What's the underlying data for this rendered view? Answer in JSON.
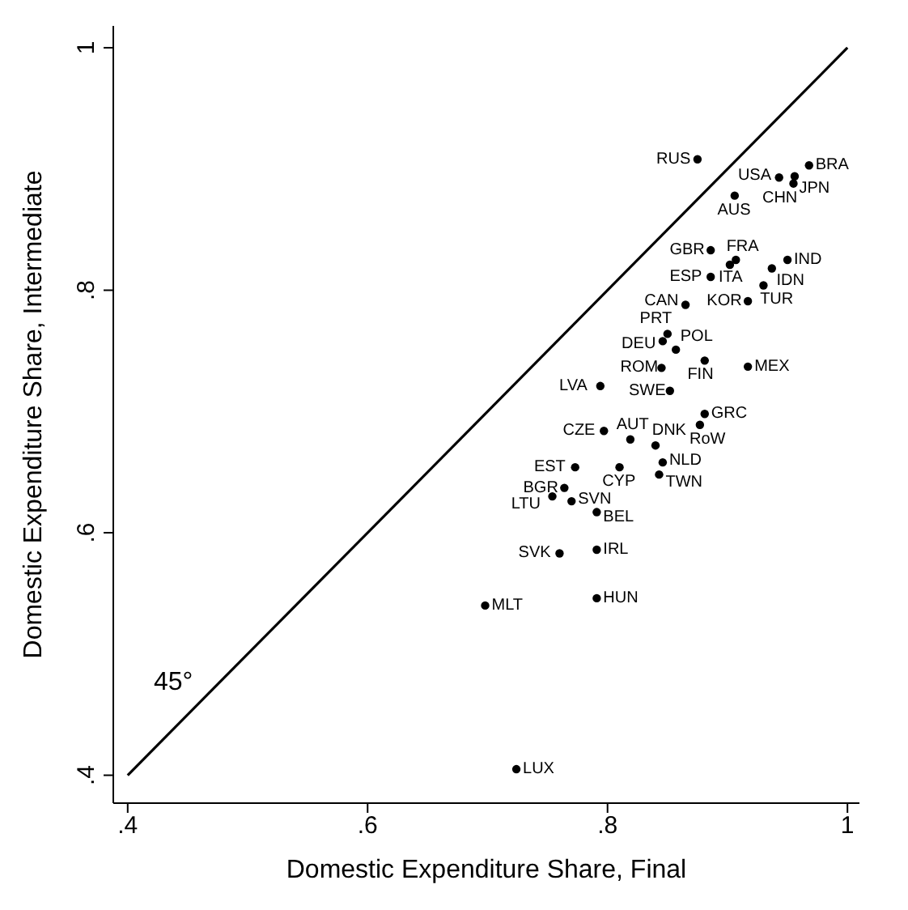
{
  "chart_data": {
    "type": "scatter",
    "xlabel": "Domestic Expenditure Share, Final",
    "ylabel": "Domestic Expenditure Share, Intermediate",
    "xlim": [
      0.388,
      1.01
    ],
    "ylim": [
      0.377,
      1.018
    ],
    "xticks": [
      {
        "value": 0.4,
        "label": ".4"
      },
      {
        "value": 0.6,
        "label": ".6"
      },
      {
        "value": 0.8,
        "label": ".8"
      },
      {
        "value": 1,
        "label": "1"
      }
    ],
    "yticks": [
      {
        "value": 0.4,
        "label": ".4"
      },
      {
        "value": 0.6,
        "label": ".6"
      },
      {
        "value": 0.8,
        "label": ".8"
      },
      {
        "value": 1,
        "label": "1"
      }
    ],
    "grid": false,
    "marker": "circle",
    "annotations": [
      "45°"
    ],
    "series": [
      {
        "type": "line",
        "color": "#000000",
        "marker": "none",
        "x": [
          0.4,
          1
        ],
        "values": [
          0.4,
          1
        ]
      },
      {
        "name": "RUS",
        "color": "#000000",
        "x": [
          0.875
        ],
        "values": [
          0.908
        ]
      },
      {
        "name": "BRA",
        "color": "#000000",
        "x": [
          0.968
        ],
        "values": [
          0.903
        ]
      },
      {
        "name": "USA",
        "color": "#000000",
        "x": [
          0.943
        ],
        "values": [
          0.893
        ]
      },
      {
        "name": "JPN",
        "color": "#000000",
        "x": [
          0.956
        ],
        "values": [
          0.894
        ]
      },
      {
        "name": "CHN",
        "color": "#000000",
        "x": [
          0.955
        ],
        "values": [
          0.888
        ]
      },
      {
        "name": "AUS",
        "color": "#000000",
        "x": [
          0.906
        ],
        "values": [
          0.878
        ]
      },
      {
        "name": "GBR",
        "color": "#000000",
        "x": [
          0.886
        ],
        "values": [
          0.833
        ]
      },
      {
        "name": "FRA",
        "color": "#000000",
        "x": [
          0.902
        ],
        "values": [
          0.821
        ]
      },
      {
        "name": "ITA",
        "color": "#000000",
        "x": [
          0.907
        ],
        "values": [
          0.825
        ]
      },
      {
        "name": "IND",
        "color": "#000000",
        "x": [
          0.95
        ],
        "values": [
          0.825
        ]
      },
      {
        "name": "IDN",
        "color": "#000000",
        "x": [
          0.937
        ],
        "values": [
          0.818
        ]
      },
      {
        "name": "ESP",
        "color": "#000000",
        "x": [
          0.886
        ],
        "values": [
          0.811
        ]
      },
      {
        "name": "TUR",
        "color": "#000000",
        "x": [
          0.93
        ],
        "values": [
          0.804
        ]
      },
      {
        "name": "CAN",
        "color": "#000000",
        "x": [
          0.865
        ],
        "values": [
          0.788
        ]
      },
      {
        "name": "KOR",
        "color": "#000000",
        "x": [
          0.917
        ],
        "values": [
          0.791
        ]
      },
      {
        "name": "PRT",
        "color": "#000000",
        "x": [
          0.85
        ],
        "values": [
          0.764
        ]
      },
      {
        "name": "DEU",
        "color": "#000000",
        "x": [
          0.846
        ],
        "values": [
          0.758
        ]
      },
      {
        "name": "POL",
        "color": "#000000",
        "x": [
          0.857
        ],
        "values": [
          0.751
        ]
      },
      {
        "name": "FIN",
        "color": "#000000",
        "x": [
          0.881
        ],
        "values": [
          0.742
        ]
      },
      {
        "name": "MEX",
        "color": "#000000",
        "x": [
          0.917
        ],
        "values": [
          0.737
        ]
      },
      {
        "name": "ROM",
        "color": "#000000",
        "x": [
          0.845
        ],
        "values": [
          0.736
        ]
      },
      {
        "name": "LVA",
        "color": "#000000",
        "x": [
          0.794
        ],
        "values": [
          0.721
        ]
      },
      {
        "name": "SWE",
        "color": "#000000",
        "x": [
          0.852
        ],
        "values": [
          0.717
        ]
      },
      {
        "name": "GRC",
        "color": "#000000",
        "x": [
          0.881
        ],
        "values": [
          0.698
        ]
      },
      {
        "name": "RoW",
        "color": "#000000",
        "x": [
          0.877
        ],
        "values": [
          0.689
        ]
      },
      {
        "name": "CZE",
        "color": "#000000",
        "x": [
          0.797
        ],
        "values": [
          0.684
        ]
      },
      {
        "name": "AUT",
        "color": "#000000",
        "x": [
          0.819
        ],
        "values": [
          0.677
        ]
      },
      {
        "name": "DNK",
        "color": "#000000",
        "x": [
          0.84
        ],
        "values": [
          0.672
        ]
      },
      {
        "name": "EST",
        "color": "#000000",
        "x": [
          0.773
        ],
        "values": [
          0.654
        ]
      },
      {
        "name": "CYP",
        "color": "#000000",
        "x": [
          0.81
        ],
        "values": [
          0.654
        ]
      },
      {
        "name": "NLD",
        "color": "#000000",
        "x": [
          0.846
        ],
        "values": [
          0.658
        ]
      },
      {
        "name": "TWN",
        "color": "#000000",
        "x": [
          0.843
        ],
        "values": [
          0.648
        ]
      },
      {
        "name": "BGR",
        "color": "#000000",
        "x": [
          0.764
        ],
        "values": [
          0.637
        ]
      },
      {
        "name": "LTU",
        "color": "#000000",
        "x": [
          0.754
        ],
        "values": [
          0.63
        ]
      },
      {
        "name": "SVN",
        "color": "#000000",
        "x": [
          0.77
        ],
        "values": [
          0.626
        ]
      },
      {
        "name": "BEL",
        "color": "#000000",
        "x": [
          0.791
        ],
        "values": [
          0.617
        ]
      },
      {
        "name": "SVK",
        "color": "#000000",
        "x": [
          0.76
        ],
        "values": [
          0.583
        ]
      },
      {
        "name": "IRL",
        "color": "#000000",
        "x": [
          0.791
        ],
        "values": [
          0.586
        ]
      },
      {
        "name": "HUN",
        "color": "#000000",
        "x": [
          0.791
        ],
        "values": [
          0.546
        ]
      },
      {
        "name": "MLT",
        "color": "#000000",
        "x": [
          0.698
        ],
        "values": [
          0.54
        ]
      },
      {
        "name": "LUX",
        "color": "#000000",
        "x": [
          0.724
        ],
        "values": [
          0.405
        ]
      }
    ]
  }
}
